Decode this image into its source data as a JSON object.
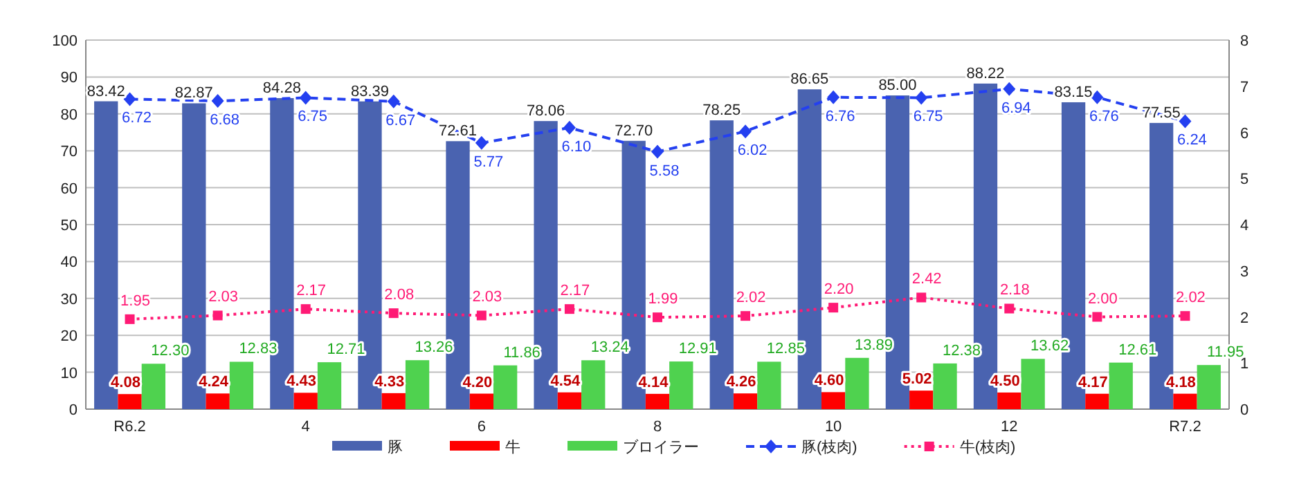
{
  "chart_data": {
    "type": "bar",
    "categories": [
      "R6.2",
      null,
      "4",
      null,
      "6",
      null,
      "8",
      null,
      "10",
      null,
      "12",
      null,
      "R7.2"
    ],
    "series": [
      {
        "name": "豚",
        "color": "#4a63b0",
        "values": [
          83.42,
          82.87,
          84.28,
          83.39,
          72.61,
          78.06,
          72.7,
          78.25,
          86.65,
          85.0,
          88.22,
          83.15,
          77.55
        ],
        "value_labels": [
          "83.42",
          "82.87",
          "84.28",
          "83.39",
          "72.61",
          "78.06",
          "72.70",
          "78.25",
          "86.65",
          "85.00",
          "88.22",
          "83.15",
          "77.55"
        ]
      },
      {
        "name": "牛",
        "color": "#ff0000",
        "values": [
          4.08,
          4.24,
          4.43,
          4.33,
          4.2,
          4.54,
          4.14,
          4.26,
          4.6,
          5.02,
          4.5,
          4.17,
          4.18
        ],
        "value_labels": [
          "4.08",
          "4.24",
          "4.43",
          "4.33",
          "4.20",
          "4.54",
          "4.14",
          "4.26",
          "4.60",
          "5.02",
          "4.50",
          "4.17",
          "4.18"
        ]
      },
      {
        "name": "ブロイラー",
        "color": "#4fd24f",
        "values": [
          12.3,
          12.83,
          12.71,
          13.26,
          11.86,
          13.24,
          12.91,
          12.85,
          13.89,
          12.38,
          13.62,
          12.61,
          11.95
        ],
        "value_labels": [
          "12.30",
          "12.83",
          "12.71",
          "13.26",
          "11.86",
          "13.24",
          "12.91",
          "12.85",
          "13.89",
          "12.38",
          "13.62",
          "12.61",
          "11.95"
        ]
      },
      {
        "name": "豚(枝肉)",
        "type": "line",
        "axis": "y2",
        "color": "#2440f0",
        "marker": "diamond",
        "line_style": "dashed",
        "values": [
          6.72,
          6.68,
          6.75,
          6.67,
          5.77,
          6.1,
          5.58,
          6.02,
          6.76,
          6.75,
          6.94,
          6.76,
          6.24
        ],
        "value_labels": [
          "6.72",
          "6.68",
          "6.75",
          "6.67",
          "5.77",
          "6.10",
          "5.58",
          "6.02",
          "6.76",
          "6.75",
          "6.94",
          "6.76",
          "6.24"
        ]
      },
      {
        "name": "牛(枝肉)",
        "type": "line",
        "axis": "y2",
        "color": "#ff1a75",
        "marker": "square",
        "line_style": "dotted",
        "values": [
          1.95,
          2.03,
          2.17,
          2.08,
          2.03,
          2.17,
          1.99,
          2.02,
          2.2,
          2.42,
          2.18,
          2.0,
          2.02
        ],
        "value_labels": [
          "1.95",
          "2.03",
          "2.17",
          "2.08",
          "2.03",
          "2.17",
          "1.99",
          "2.02",
          "2.20",
          "2.42",
          "2.18",
          "2.00",
          "2.02"
        ]
      }
    ],
    "ylim": [
      0,
      100
    ],
    "yticks": [
      0,
      10,
      20,
      30,
      40,
      50,
      60,
      70,
      80,
      90,
      100
    ],
    "y2lim": [
      0,
      8
    ],
    "y2ticks": [
      0,
      1,
      2,
      3,
      4,
      5,
      6,
      7,
      8
    ],
    "grid": "y",
    "legend": "bottom"
  }
}
